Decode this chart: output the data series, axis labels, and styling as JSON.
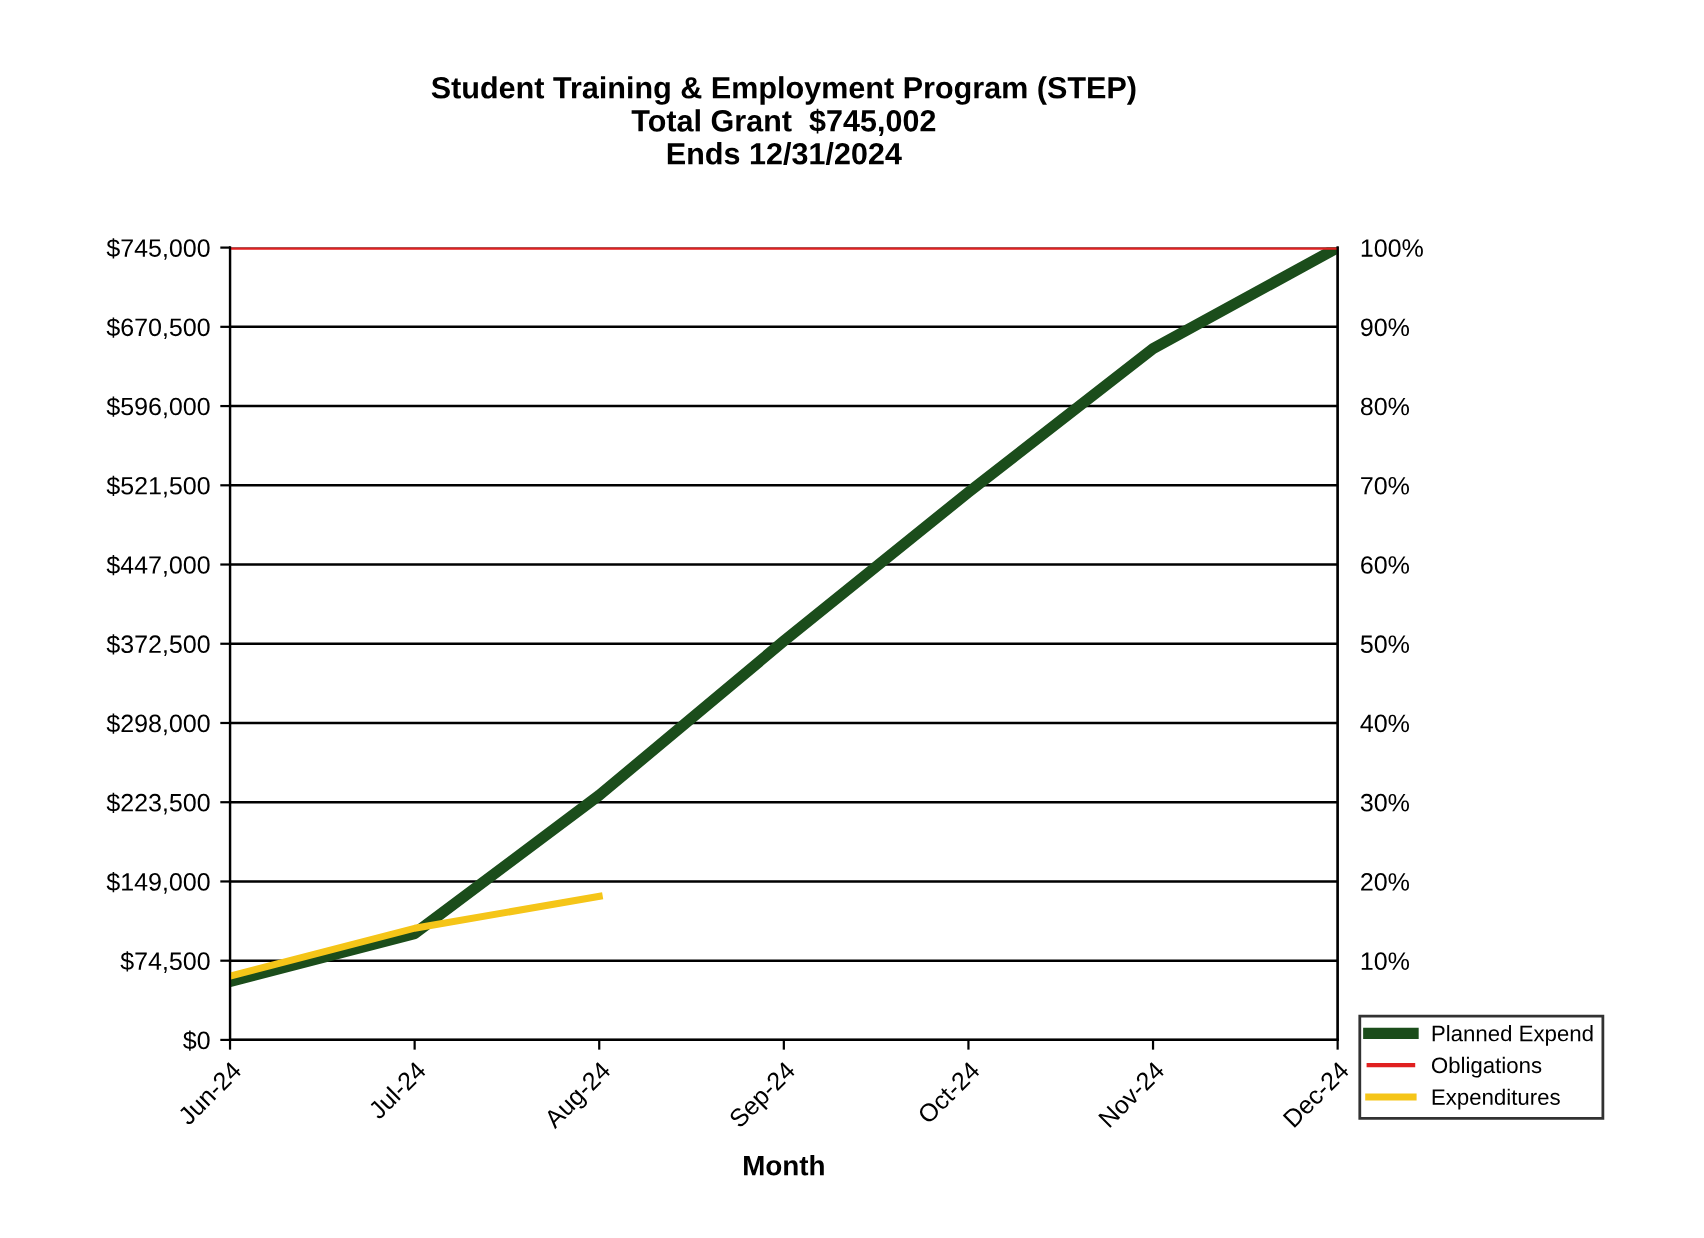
{
  "chart_data": {
    "type": "line",
    "title": "Student Training & Employment Program (STEP)\nTotal Grant  $745,002\nEnds 12/31/2024",
    "xlabel": "Month",
    "categories": [
      "Jun-24",
      "Jul-24",
      "Aug-24",
      "Sep-24",
      "Oct-24",
      "Nov-24",
      "Dec-24"
    ],
    "series": [
      {
        "name": "Planned Expend",
        "color": "#1b4d1b",
        "values": [
          55000,
          100000,
          230000,
          375000,
          515000,
          650000,
          745000
        ]
      },
      {
        "name": "Obligations",
        "color": "#e02020",
        "values": [
          745000,
          745000,
          745000,
          745000,
          745000,
          745000,
          745000
        ]
      },
      {
        "name": "Expenditures",
        "color": "#f5c518",
        "values": [
          60000,
          105000,
          135000,
          null,
          null,
          null,
          null
        ]
      }
    ],
    "ylim": [
      0,
      745000
    ],
    "yticks": [
      {
        "value": 0,
        "label": "$0"
      },
      {
        "value": 74500,
        "label": "$74,500"
      },
      {
        "value": 149000,
        "label": "$149,000"
      },
      {
        "value": 223500,
        "label": "$223,500"
      },
      {
        "value": 298000,
        "label": "$298,000"
      },
      {
        "value": 372500,
        "label": "$372,500"
      },
      {
        "value": 447000,
        "label": "$447,000"
      },
      {
        "value": 521500,
        "label": "$521,500"
      },
      {
        "value": 596000,
        "label": "$596,000"
      },
      {
        "value": 670500,
        "label": "$670,500"
      },
      {
        "value": 745000,
        "label": "$745,000"
      }
    ],
    "y2lim": [
      0,
      100
    ],
    "y2ticks": [
      {
        "value": 10,
        "label": "10%"
      },
      {
        "value": 20,
        "label": "20%"
      },
      {
        "value": 30,
        "label": "30%"
      },
      {
        "value": 40,
        "label": "40%"
      },
      {
        "value": 50,
        "label": "50%"
      },
      {
        "value": 60,
        "label": "60%"
      },
      {
        "value": 70,
        "label": "70%"
      },
      {
        "value": 80,
        "label": "80%"
      },
      {
        "value": 90,
        "label": "90%"
      },
      {
        "value": 100,
        "label": "100%"
      }
    ],
    "grid": "y",
    "legend": "bottom right",
    "marker": "none",
    "line_style": "solid"
  }
}
